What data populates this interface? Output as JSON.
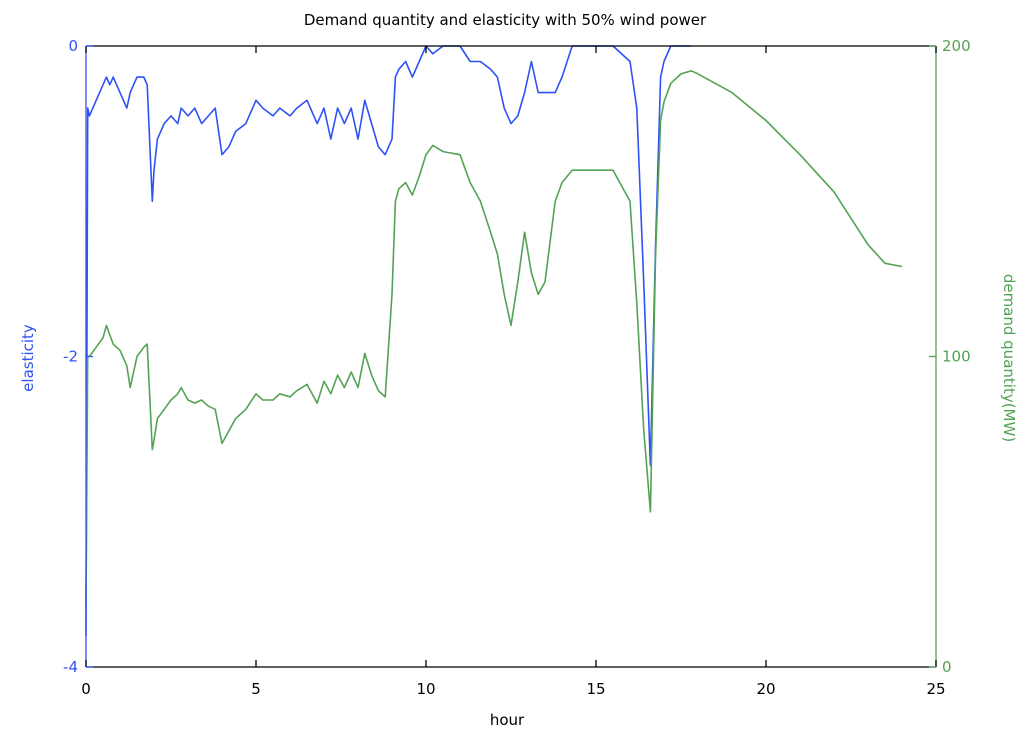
{
  "chart_data": {
    "type": "line",
    "title": "Demand quantity and elasticity with 50% wind power",
    "xlabel": "hour",
    "xlim": [
      0,
      25
    ],
    "xticks": [
      0,
      5,
      10,
      15,
      20,
      25
    ],
    "y_left": {
      "label": "elasticity",
      "lim": [
        -4,
        0
      ],
      "ticks": [
        -4,
        -2,
        0
      ],
      "color": "#2f52f5"
    },
    "y_right": {
      "label": "demand quantity(MW)",
      "lim": [
        0,
        200
      ],
      "ticks": [
        0,
        100,
        200
      ],
      "color": "#54a254"
    },
    "grid": false,
    "series": [
      {
        "axis": "left",
        "color": "#2f52f5",
        "x": [
          0,
          0.05,
          0.1,
          0.3,
          0.5,
          0.6,
          0.7,
          0.8,
          1.0,
          1.2,
          1.3,
          1.5,
          1.7,
          1.8,
          1.95,
          2.0,
          2.1,
          2.3,
          2.5,
          2.7,
          2.8,
          3.0,
          3.2,
          3.4,
          3.6,
          3.8,
          4.0,
          4.2,
          4.4,
          4.7,
          5.0,
          5.2,
          5.5,
          5.7,
          6.0,
          6.2,
          6.5,
          6.8,
          7.0,
          7.2,
          7.4,
          7.6,
          7.8,
          8.0,
          8.2,
          8.4,
          8.6,
          8.8,
          9.0,
          9.1,
          9.2,
          9.4,
          9.6,
          9.8,
          10.0,
          10.2,
          10.5,
          11.0,
          11.3,
          11.6,
          11.9,
          12.1,
          12.3,
          12.5,
          12.7,
          12.9,
          13.1,
          13.3,
          13.5,
          13.8,
          14.0,
          14.3,
          15.0,
          15.5,
          16.0,
          16.2,
          16.4,
          16.6,
          16.75,
          16.9,
          17.0,
          17.2,
          17.5,
          17.8
        ],
        "y": [
          -3.8,
          -0.4,
          -0.45,
          -0.35,
          -0.25,
          -0.2,
          -0.25,
          -0.2,
          -0.3,
          -0.4,
          -0.3,
          -0.2,
          -0.2,
          -0.25,
          -1.0,
          -0.8,
          -0.6,
          -0.5,
          -0.45,
          -0.5,
          -0.4,
          -0.45,
          -0.4,
          -0.5,
          -0.45,
          -0.4,
          -0.7,
          -0.65,
          -0.55,
          -0.5,
          -0.35,
          -0.4,
          -0.45,
          -0.4,
          -0.45,
          -0.4,
          -0.35,
          -0.5,
          -0.4,
          -0.6,
          -0.4,
          -0.5,
          -0.4,
          -0.6,
          -0.35,
          -0.5,
          -0.65,
          -0.7,
          -0.6,
          -0.2,
          -0.15,
          -0.1,
          -0.2,
          -0.1,
          0,
          -0.05,
          0,
          0,
          -0.1,
          -0.1,
          -0.15,
          -0.2,
          -0.4,
          -0.5,
          -0.45,
          -0.3,
          -0.1,
          -0.3,
          -0.3,
          -0.3,
          -0.2,
          0,
          0,
          0,
          -0.1,
          -0.4,
          -1.5,
          -2.7,
          -1.3,
          -0.2,
          -0.1,
          0,
          0,
          0
        ]
      },
      {
        "axis": "right",
        "color": "#54a254",
        "x": [
          0,
          0.05,
          0.1,
          0.3,
          0.5,
          0.6,
          0.7,
          0.8,
          1.0,
          1.2,
          1.3,
          1.5,
          1.7,
          1.8,
          1.95,
          2.0,
          2.1,
          2.3,
          2.5,
          2.7,
          2.8,
          3.0,
          3.2,
          3.4,
          3.6,
          3.8,
          4.0,
          4.2,
          4.4,
          4.7,
          5.0,
          5.2,
          5.5,
          5.7,
          6.0,
          6.2,
          6.5,
          6.8,
          7.0,
          7.2,
          7.4,
          7.6,
          7.8,
          8.0,
          8.2,
          8.4,
          8.6,
          8.8,
          9.0,
          9.1,
          9.2,
          9.4,
          9.6,
          9.8,
          10.0,
          10.2,
          10.5,
          11.0,
          11.3,
          11.6,
          11.9,
          12.1,
          12.3,
          12.5,
          12.7,
          12.9,
          13.1,
          13.3,
          13.5,
          13.8,
          14.0,
          14.3,
          15.0,
          15.5,
          16.0,
          16.2,
          16.4,
          16.6,
          16.75,
          16.9,
          17.0,
          17.2,
          17.5,
          17.8,
          18.0,
          19.0,
          20.0,
          21.0,
          22.0,
          23.0,
          23.5,
          24.0
        ],
        "y": [
          20,
          100,
          100,
          103,
          106,
          110,
          107,
          104,
          102,
          97,
          90,
          100,
          103,
          104,
          70,
          73,
          80,
          83,
          86,
          88,
          90,
          86,
          85,
          86,
          84,
          83,
          72,
          76,
          80,
          83,
          88,
          86,
          86,
          88,
          87,
          89,
          91,
          85,
          92,
          88,
          94,
          90,
          95,
          90,
          101,
          94,
          89,
          87,
          120,
          150,
          154,
          156,
          152,
          158,
          165,
          168,
          166,
          165,
          156,
          150,
          140,
          133,
          120,
          110,
          124,
          140,
          127,
          120,
          124,
          150,
          156,
          160,
          160,
          160,
          150,
          117,
          77,
          50,
          132,
          176,
          182,
          188,
          191,
          192,
          191,
          185,
          176,
          165,
          153,
          136,
          130,
          129
        ]
      }
    ]
  }
}
